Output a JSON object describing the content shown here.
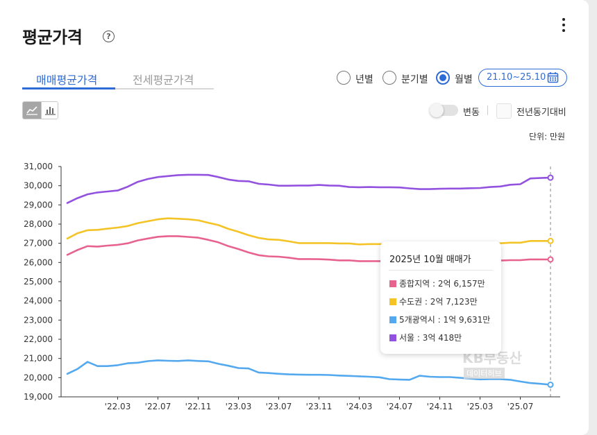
{
  "header": {
    "title": "평균가격",
    "help_icon": "?"
  },
  "tabs": [
    {
      "label": "매매평균가격",
      "active": true
    },
    {
      "label": "전세평균가격",
      "active": false
    }
  ],
  "period": {
    "options": [
      {
        "label": "년별",
        "selected": false
      },
      {
        "label": "분기별",
        "selected": false
      },
      {
        "label": "월별",
        "selected": true
      }
    ],
    "range": "21.10~25.10"
  },
  "controls": {
    "change_toggle_label": "변동",
    "yoy_label": "전년동기대비",
    "unit_label": "단위: 만원"
  },
  "tooltip": {
    "title": "2025년 10월 매매가",
    "rows": [
      {
        "text": "종합지역 : 2억 6,157만",
        "color": "#e8628e"
      },
      {
        "text": "수도권 : 2억 7,123만",
        "color": "#f4c325"
      },
      {
        "text": "5개광역시 : 1억 9,631만",
        "color": "#53a8ee"
      },
      {
        "text": "서울 : 3억 418만",
        "color": "#9351e0"
      }
    ]
  },
  "watermark": {
    "line1": "KB부동산",
    "line2": "데이터허브"
  },
  "colors": {
    "accent": "#2d6bd6"
  },
  "chart_data": {
    "type": "line",
    "x": [
      "21.10",
      "21.11",
      "21.12",
      "22.01",
      "22.02",
      "22.03",
      "22.04",
      "22.05",
      "22.06",
      "22.07",
      "22.08",
      "22.09",
      "22.10",
      "22.11",
      "22.12",
      "23.01",
      "23.02",
      "23.03",
      "23.04",
      "23.05",
      "23.06",
      "23.07",
      "23.08",
      "23.09",
      "23.10",
      "23.11",
      "23.12",
      "24.01",
      "24.02",
      "24.03",
      "24.04",
      "24.05",
      "24.06",
      "24.07",
      "24.08",
      "24.09",
      "24.10",
      "24.11",
      "24.12",
      "25.01",
      "25.02",
      "25.03",
      "25.04",
      "25.05",
      "25.06",
      "25.07",
      "25.08",
      "25.09",
      "25.10"
    ],
    "xtick_labels": [
      "'22.03",
      "'22.07",
      "'22.11",
      "'23.03",
      "'23.07",
      "'23.11",
      "'24.03",
      "'24.07",
      "'24.11",
      "'25.03",
      "'25.07"
    ],
    "xtick_months": [
      "22.03",
      "22.07",
      "22.11",
      "23.03",
      "23.07",
      "23.11",
      "24.03",
      "24.07",
      "24.11",
      "25.03",
      "25.07"
    ],
    "ylim": [
      19000,
      31000
    ],
    "yticks": [
      19000,
      20000,
      21000,
      22000,
      23000,
      24000,
      25000,
      26000,
      27000,
      28000,
      29000,
      30000,
      31000
    ],
    "ytick_labels": [
      "19,000",
      "20,000",
      "21,000",
      "22,000",
      "23,000",
      "24,000",
      "25,000",
      "26,000",
      "27,000",
      "28,000",
      "29,000",
      "30,000",
      "31,000"
    ],
    "series": [
      {
        "name": "서울",
        "color": "#9351e0",
        "values": [
          29100,
          29350,
          29550,
          29650,
          29700,
          29750,
          29950,
          30200,
          30350,
          30450,
          30500,
          30550,
          30570,
          30570,
          30560,
          30450,
          30320,
          30250,
          30230,
          30100,
          30060,
          30000,
          30000,
          30010,
          30010,
          30040,
          30010,
          30000,
          29930,
          29920,
          29930,
          29920,
          29920,
          29910,
          29860,
          29820,
          29820,
          29840,
          29850,
          29850,
          29870,
          29880,
          29930,
          29960,
          30050,
          30080,
          30380,
          30400,
          30418
        ]
      },
      {
        "name": "수도권",
        "color": "#f4c325",
        "values": [
          27250,
          27520,
          27680,
          27700,
          27760,
          27820,
          27900,
          28050,
          28150,
          28250,
          28300,
          28280,
          28250,
          28200,
          28070,
          27950,
          27750,
          27600,
          27420,
          27280,
          27200,
          27180,
          27100,
          27010,
          27010,
          27010,
          27010,
          26990,
          26990,
          26940,
          26960,
          26960,
          26950,
          26930,
          26920,
          26910,
          26920,
          26950,
          26950,
          26950,
          26960,
          26960,
          26980,
          27000,
          27030,
          27030,
          27120,
          27120,
          27123
        ]
      },
      {
        "name": "종합지역",
        "color": "#e8628e",
        "values": [
          26400,
          26650,
          26850,
          26830,
          26880,
          26920,
          27000,
          27150,
          27250,
          27340,
          27370,
          27370,
          27330,
          27290,
          27180,
          27050,
          26850,
          26700,
          26520,
          26380,
          26320,
          26300,
          26250,
          26180,
          26180,
          26170,
          26150,
          26110,
          26110,
          26070,
          26070,
          26070,
          26070,
          26060,
          26060,
          26050,
          26060,
          26070,
          26070,
          26070,
          26070,
          26070,
          26070,
          26100,
          26120,
          26120,
          26160,
          26160,
          26157
        ]
      },
      {
        "name": "5개광역시",
        "color": "#53a8ee",
        "values": [
          20200,
          20450,
          20820,
          20600,
          20600,
          20650,
          20750,
          20780,
          20860,
          20900,
          20880,
          20870,
          20900,
          20870,
          20850,
          20720,
          20620,
          20500,
          20480,
          20270,
          20240,
          20200,
          20170,
          20160,
          20150,
          20150,
          20140,
          20110,
          20090,
          20070,
          20050,
          20020,
          19920,
          19900,
          19890,
          20100,
          20050,
          20030,
          20030,
          19990,
          19950,
          19910,
          19920,
          19920,
          19890,
          19800,
          19720,
          19680,
          19631
        ]
      }
    ]
  }
}
